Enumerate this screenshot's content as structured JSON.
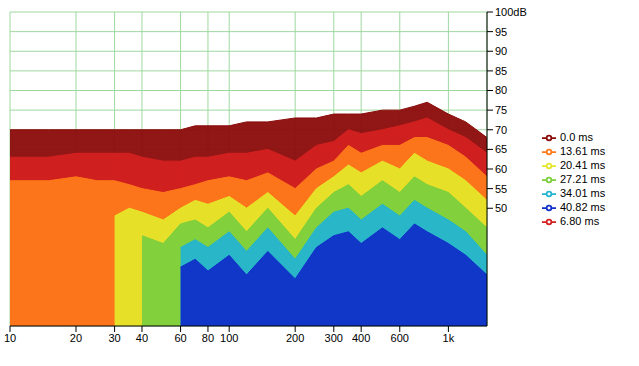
{
  "chart_data": {
    "type": "area",
    "log": "x",
    "grid": true,
    "legend": "right",
    "x": [
      10,
      15,
      20,
      25,
      30,
      35,
      40,
      50,
      60,
      70,
      80,
      100,
      120,
      150,
      200,
      250,
      300,
      350,
      400,
      500,
      600,
      700,
      800,
      1000,
      1200,
      1500
    ],
    "xlim": [
      10,
      1500
    ],
    "xticks": [
      10,
      20,
      30,
      40,
      60,
      80,
      100,
      200,
      300,
      400,
      600,
      {
        "value": 1000,
        "label": "1k"
      }
    ],
    "ylim": [
      20,
      100
    ],
    "yticks": [
      50,
      55,
      60,
      65,
      70,
      75,
      80,
      85,
      90,
      95,
      {
        "value": 100,
        "label": "100dB"
      }
    ],
    "series": [
      {
        "name": "0.0 ms",
        "color": "#8b0a0a",
        "values": [
          70,
          70,
          70,
          70,
          70,
          70,
          70,
          70,
          70,
          71,
          71,
          71,
          72,
          72,
          73,
          73,
          74,
          74,
          74,
          75,
          75,
          76,
          77,
          74,
          72,
          68
        ]
      },
      {
        "name": "6.80 ms",
        "color": "#d42020",
        "values": [
          63,
          63,
          64,
          64,
          64,
          64,
          63,
          62,
          62,
          63,
          63,
          64,
          64,
          65,
          62,
          66,
          67,
          70,
          69,
          70,
          71,
          72,
          73,
          70,
          68,
          64
        ]
      },
      {
        "name": "13.61 ms",
        "color": "#ff7a1a",
        "values": [
          57,
          57,
          58,
          57,
          57,
          56,
          55,
          54,
          55,
          56,
          57,
          58,
          57,
          59,
          55,
          60,
          62,
          66,
          64,
          66,
          66,
          68,
          68,
          66,
          63,
          58
        ]
      },
      {
        "name": "20.41 ms",
        "color": "#e6e62a",
        "values": [
          null,
          null,
          null,
          null,
          48,
          50,
          49,
          47,
          50,
          52,
          51,
          53,
          50,
          54,
          48,
          55,
          58,
          61,
          59,
          62,
          60,
          64,
          62,
          60,
          57,
          52
        ]
      },
      {
        "name": "27.21 ms",
        "color": "#7ccf3c",
        "values": [
          null,
          null,
          null,
          null,
          null,
          null,
          43,
          41,
          46,
          47,
          45,
          49,
          44,
          50,
          42,
          50,
          54,
          56,
          53,
          57,
          54,
          58,
          56,
          54,
          50,
          45
        ]
      },
      {
        "name": "34.01 ms",
        "color": "#24b4d0",
        "values": [
          null,
          null,
          null,
          null,
          null,
          null,
          null,
          null,
          40,
          42,
          40,
          44,
          39,
          45,
          37,
          45,
          49,
          50,
          47,
          51,
          48,
          52,
          50,
          47,
          44,
          38
        ]
      },
      {
        "name": "40.82 ms",
        "color": "#1030c8",
        "values": [
          null,
          null,
          null,
          null,
          null,
          null,
          null,
          null,
          35,
          37,
          34,
          38,
          33,
          39,
          32,
          40,
          43,
          44,
          41,
          45,
          42,
          46,
          44,
          41,
          38,
          33
        ]
      }
    ]
  }
}
